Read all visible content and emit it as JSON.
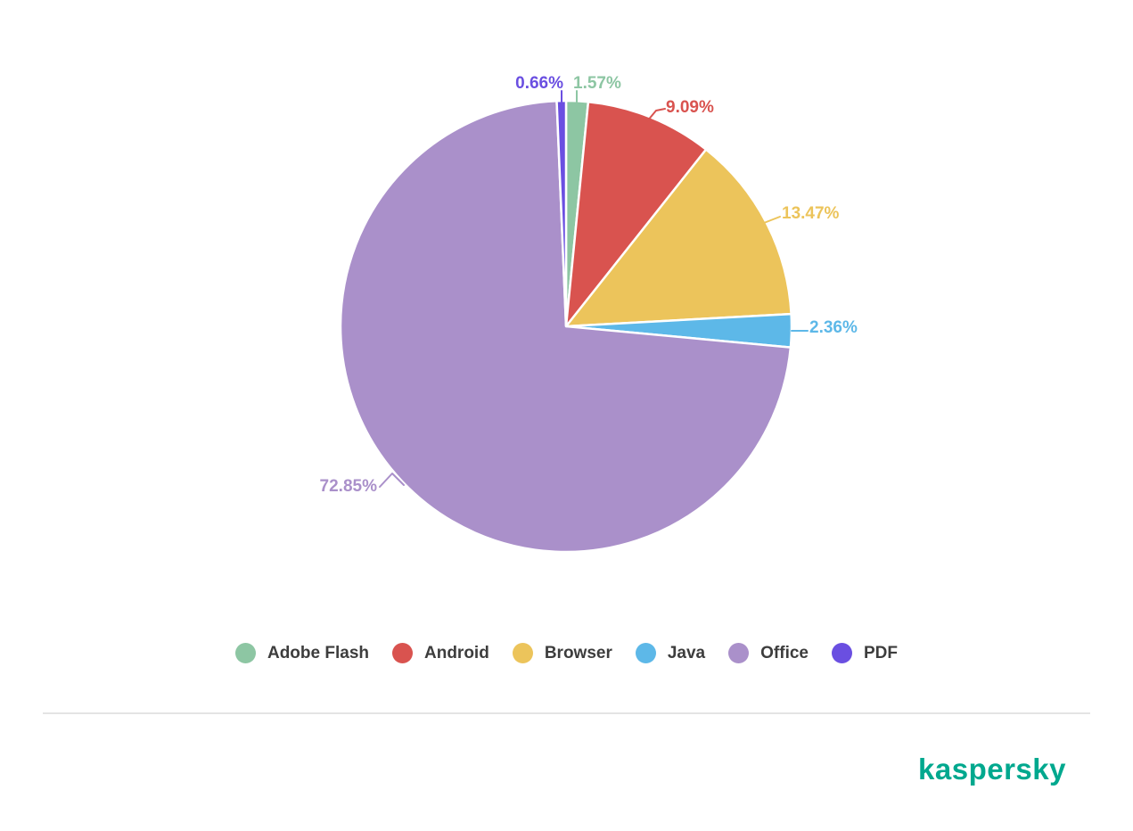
{
  "page": {
    "background": "#ffffff"
  },
  "chart_data": {
    "type": "pie",
    "title": "",
    "unit": "%",
    "direction": "clockwise",
    "start_angle_deg": 0,
    "legend_position": "bottom",
    "slices": [
      {
        "name": "Adobe Flash",
        "value": 1.57,
        "label": "1.57%",
        "color": "#8dc6a3"
      },
      {
        "name": "Android",
        "value": 9.09,
        "label": "9.09%",
        "color": "#d9534f"
      },
      {
        "name": "Browser",
        "value": 13.47,
        "label": "13.47%",
        "color": "#ecc45b"
      },
      {
        "name": "Java",
        "value": 2.36,
        "label": "2.36%",
        "color": "#5db8e8"
      },
      {
        "name": "Office",
        "value": 72.85,
        "label": "72.85%",
        "color": "#aa90ca"
      },
      {
        "name": "PDF",
        "value": 0.66,
        "label": "0.66%",
        "color": "#6a4fe1"
      }
    ]
  },
  "footer": {
    "logo_text": "kaspersky"
  }
}
